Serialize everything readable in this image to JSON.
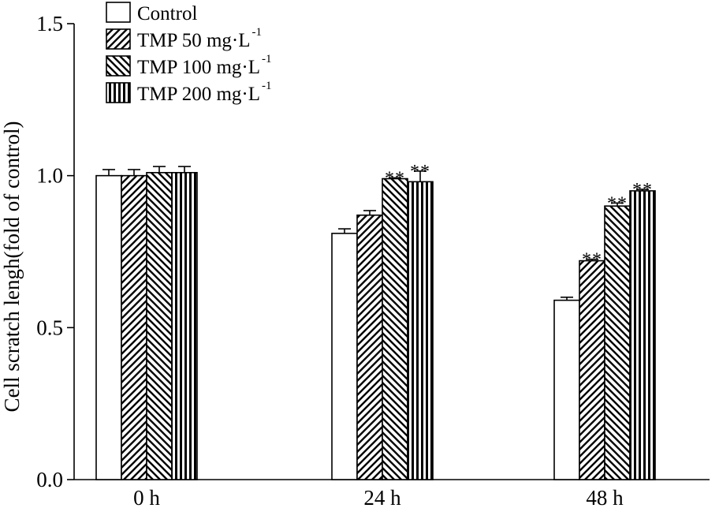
{
  "chart_data": {
    "type": "bar",
    "title": "",
    "xlabel": "",
    "ylabel": "Cell scratch lengh(fold of control)",
    "ylim": [
      0,
      1.5
    ],
    "yticks": [
      "0.0",
      "0.5",
      "1.0",
      "1.5"
    ],
    "ytick_values": [
      0,
      0.5,
      1.0,
      1.5
    ],
    "categories": [
      "0 h",
      "24 h",
      "48 h"
    ],
    "series": [
      {
        "name": "Control",
        "unit": "",
        "pattern": "none",
        "values": [
          1.0,
          0.81,
          0.59
        ],
        "errors": [
          0.02,
          0.015,
          0.01
        ],
        "significance": [
          "",
          "",
          ""
        ]
      },
      {
        "name": "TMP 50 mg·L",
        "unit": "-1",
        "pattern": "diagonal",
        "values": [
          1.0,
          0.87,
          0.72
        ],
        "errors": [
          0.02,
          0.015,
          0.005
        ],
        "significance": [
          "",
          "",
          "**"
        ]
      },
      {
        "name": "TMP 100 mg·L",
        "unit": "-1",
        "pattern": "diagonal-reverse",
        "values": [
          1.01,
          0.99,
          0.9
        ],
        "errors": [
          0.02,
          0.003,
          0.01
        ],
        "significance": [
          "",
          "**",
          "**"
        ]
      },
      {
        "name": "TMP 200 mg·L",
        "unit": "-1",
        "pattern": "vertical",
        "values": [
          1.01,
          0.98,
          0.95
        ],
        "errors": [
          0.02,
          0.035,
          0.005
        ],
        "significance": [
          "",
          "**",
          "**"
        ]
      }
    ],
    "legend_position": "top-left",
    "grid": false
  }
}
